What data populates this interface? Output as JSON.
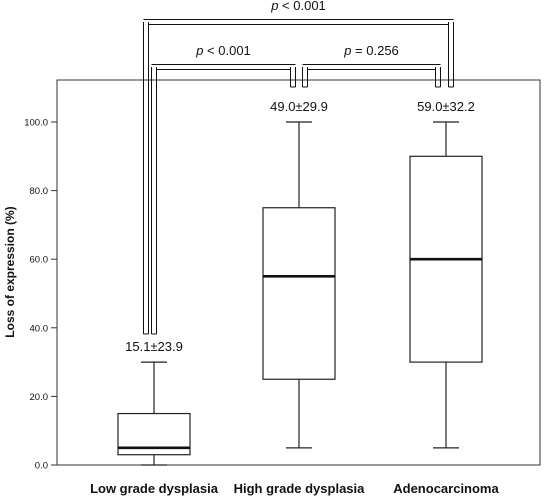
{
  "chart_data": {
    "type": "boxplot",
    "ylabel": "Loss of expression (%)",
    "xlabel": "",
    "ylim": [
      0,
      110
    ],
    "yticks": [
      0,
      20,
      40,
      60,
      80,
      100
    ],
    "ytick_labels": [
      "0.0",
      "20.0",
      "40.0",
      "60.0",
      "80.0",
      "100.0"
    ],
    "grid": false,
    "categories": [
      "Low grade dysplasia",
      "High grade dysplasia",
      "Adenocarcinoma"
    ],
    "boxes": [
      {
        "category": "Low grade dysplasia",
        "min": 0,
        "q1": 3,
        "median": 5,
        "q3": 15,
        "max": 30,
        "summary": "15.1±23.9"
      },
      {
        "category": "High grade dysplasia",
        "min": 5,
        "q1": 25,
        "median": 55,
        "q3": 75,
        "max": 100,
        "summary": "49.0±29.9"
      },
      {
        "category": "Adenocarcinoma",
        "min": 5,
        "q1": 30,
        "median": 60,
        "q3": 90,
        "max": 100,
        "summary": "59.0±32.2"
      }
    ],
    "comparisons": [
      {
        "from": 0,
        "to": 1,
        "level": 1,
        "p_symbol": "p",
        "p_rest": " < 0.001"
      },
      {
        "from": 1,
        "to": 2,
        "level": 1,
        "p_symbol": "p",
        "p_rest": " = 0.256"
      },
      {
        "from": 0,
        "to": 2,
        "level": 2,
        "p_symbol": "p",
        "p_rest": " < 0.001"
      }
    ]
  }
}
